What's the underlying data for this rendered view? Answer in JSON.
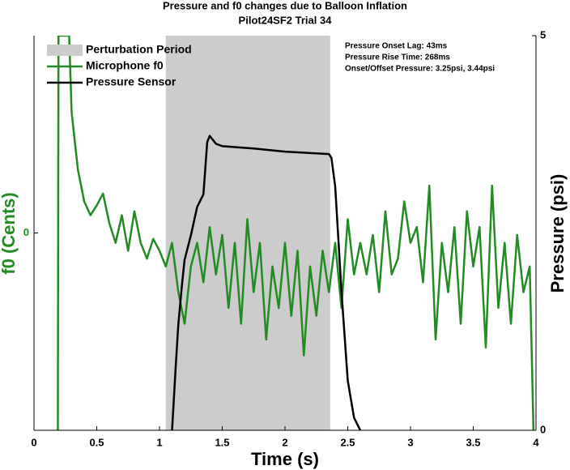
{
  "chart_data": {
    "type": "line",
    "title": "Pressure and f0 changes due to Balloon Inflation",
    "subtitle": "Pilot24SF2 Trial 34",
    "x_label": "Time (s)",
    "y_label": "f0 (Cents)",
    "y2_label": "Pressure (psi)",
    "xlim": [
      0,
      4
    ],
    "xticks": [
      0,
      0.5,
      1,
      1.5,
      2,
      2.5,
      3,
      3.5,
      4
    ],
    "ylim": [
      -100,
      100
    ],
    "yticks": [
      0
    ],
    "y2lim": [
      0,
      5
    ],
    "y2ticks": [
      0,
      5
    ],
    "perturbation": {
      "name": "Perturbation Period",
      "start": 1.05,
      "end": 2.36,
      "color": "#cccccc"
    },
    "annotations": [
      "Pressure Onset Lag: 43ms",
      "Pressure Rise Time: 268ms",
      "Onset/Offset Pressure: 3.25psi, 3.44psi"
    ],
    "legend": "upper left",
    "series": [
      {
        "name": "Microphone f0",
        "color": "#228b22",
        "x": [
          0.19,
          0.195,
          0.26,
          0.28,
          0.3,
          0.35,
          0.4,
          0.45,
          0.5,
          0.55,
          0.6,
          0.65,
          0.7,
          0.75,
          0.8,
          0.85,
          0.9,
          0.95,
          1.0,
          1.05,
          1.1,
          1.15,
          1.2,
          1.25,
          1.3,
          1.35,
          1.4,
          1.45,
          1.5,
          1.55,
          1.6,
          1.65,
          1.7,
          1.75,
          1.8,
          1.85,
          1.9,
          1.95,
          2.0,
          2.05,
          2.1,
          2.15,
          2.2,
          2.25,
          2.3,
          2.35,
          2.4,
          2.45,
          2.5,
          2.55,
          2.6,
          2.65,
          2.7,
          2.75,
          2.8,
          2.85,
          2.9,
          2.95,
          3.0,
          3.05,
          3.1,
          3.15,
          3.2,
          3.25,
          3.3,
          3.35,
          3.4,
          3.45,
          3.5,
          3.55,
          3.6,
          3.65,
          3.7,
          3.75,
          3.8,
          3.85,
          3.9,
          3.95,
          3.98
        ],
        "values": [
          -100,
          100,
          100,
          100,
          61,
          32,
          16,
          9,
          14,
          20,
          5,
          -5,
          9,
          -9,
          11,
          -5,
          -13,
          -3,
          -9,
          -17,
          -5,
          -30,
          -46,
          -17,
          -5,
          -25,
          3,
          -21,
          -1,
          -38,
          -5,
          -46,
          7,
          -30,
          -5,
          -54,
          -17,
          -38,
          -5,
          -42,
          -9,
          -62,
          -17,
          -42,
          -9,
          -30,
          -5,
          -38,
          7,
          -21,
          -5,
          -21,
          -1,
          -30,
          11,
          -21,
          -13,
          16,
          -5,
          3,
          -25,
          24,
          -54,
          -5,
          -30,
          3,
          -46,
          11,
          -17,
          3,
          -58,
          24,
          -38,
          -5,
          -46,
          -1,
          -30,
          -17,
          -100
        ]
      },
      {
        "name": "Pressure Sensor",
        "color": "#000000",
        "axis": "y2",
        "x": [
          1.1,
          1.13,
          1.15,
          1.18,
          1.2,
          1.25,
          1.3,
          1.35,
          1.38,
          1.4,
          1.45,
          1.5,
          1.75,
          2.0,
          2.35,
          2.37,
          2.4,
          2.45,
          2.5,
          2.55,
          2.6
        ],
        "values": [
          0,
          0.83,
          1.34,
          1.86,
          2.16,
          2.47,
          2.83,
          2.99,
          3.65,
          3.73,
          3.63,
          3.6,
          3.57,
          3.53,
          3.5,
          3.45,
          3.09,
          1.76,
          0.63,
          0.16,
          0
        ]
      }
    ]
  }
}
